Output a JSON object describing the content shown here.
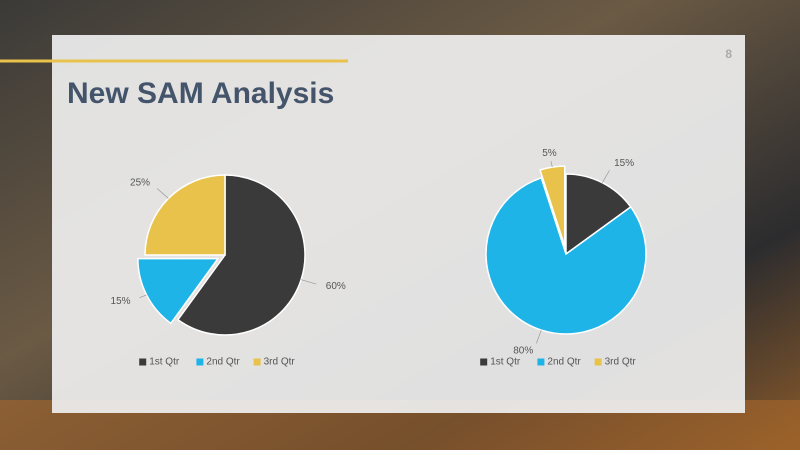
{
  "slide": {
    "title": "New SAM Analysis",
    "page_number": "8"
  },
  "chart_data": [
    {
      "type": "pie",
      "categories": [
        "1st Qtr",
        "2nd Qtr",
        "3rd Qtr"
      ],
      "values": [
        60,
        15,
        25
      ],
      "value_labels": [
        "60%",
        "15%",
        "25%"
      ],
      "colors": [
        "#3a3a3a",
        "#1fb4e8",
        "#e8c24a"
      ],
      "legend": "bottom"
    },
    {
      "type": "pie",
      "categories": [
        "1st Qtr",
        "2nd Qtr",
        "3rd Qtr"
      ],
      "values": [
        15,
        80,
        5
      ],
      "value_labels": [
        "15%",
        "80%",
        "5%"
      ],
      "colors": [
        "#3a3a3a",
        "#1fb4e8",
        "#e8c24a"
      ],
      "legend": "bottom"
    }
  ]
}
